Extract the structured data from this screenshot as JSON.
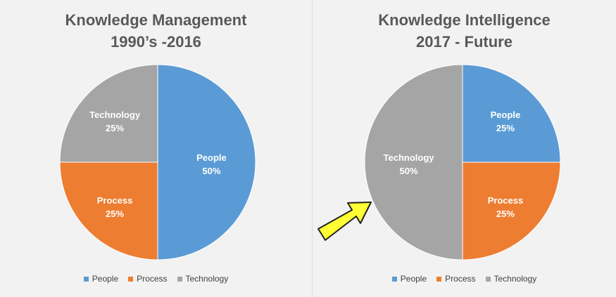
{
  "colors": {
    "People": "#5b9bd5",
    "Process": "#ed7d31",
    "Technology": "#a5a5a5"
  },
  "chart_data": [
    {
      "type": "pie",
      "title_line1": "Knowledge Management",
      "title_line2": "1990’s -2016",
      "categories": [
        "People",
        "Process",
        "Technology"
      ],
      "values": [
        50,
        25,
        25
      ],
      "labels": [
        "50%",
        "25%",
        "25%"
      ],
      "legend": {
        "position": "bottom",
        "entries": [
          "People",
          "Process",
          "Technology"
        ]
      }
    },
    {
      "type": "pie",
      "title_line1": "Knowledge Intelligence",
      "title_line2": "2017 - Future",
      "categories": [
        "People",
        "Process",
        "Technology"
      ],
      "values": [
        25,
        25,
        50
      ],
      "labels": [
        "25%",
        "25%",
        "50%"
      ],
      "legend": {
        "position": "bottom",
        "entries": [
          "People",
          "Process",
          "Technology"
        ]
      }
    }
  ],
  "annotation": {
    "arrow_icon": "yellow-arrow-icon"
  }
}
